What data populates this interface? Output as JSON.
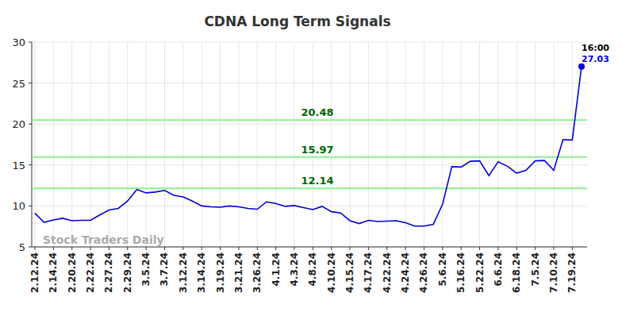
{
  "chart_data": {
    "type": "line",
    "title": "CDNA Long Term Signals",
    "watermark": "Stock Traders Daily",
    "categories": [
      "2.12.24",
      null,
      "2.14.24",
      null,
      "2.20.24",
      null,
      "2.22.24",
      null,
      "2.27.24",
      null,
      "2.29.24",
      null,
      "3.5.24",
      null,
      "3.7.24",
      null,
      "3.12.24",
      null,
      "3.14.24",
      null,
      "3.19.24",
      null,
      "3.21.24",
      null,
      "3.26.24",
      null,
      "4.1.24",
      null,
      "4.3.24",
      null,
      "4.8.24",
      null,
      "4.10.24",
      null,
      "4.15.24",
      null,
      "4.17.24",
      null,
      "4.22.24",
      null,
      "4.24.24",
      null,
      "4.26.24",
      null,
      "5.6.24",
      null,
      "5.16.24",
      null,
      "5.22.24",
      null,
      "6.6.24",
      null,
      "6.18.24",
      null,
      "7.5.24",
      null,
      "7.10.24",
      null,
      "7.19.24",
      null
    ],
    "series": [
      {
        "name": "CDNA",
        "color": "#0000dd",
        "values": [
          9.1,
          8.0,
          8.3,
          8.5,
          8.2,
          8.25,
          8.25,
          8.9,
          9.5,
          9.7,
          10.6,
          12.0,
          11.6,
          11.7,
          11.9,
          11.3,
          11.1,
          10.6,
          10.0,
          9.9,
          9.85,
          10.0,
          9.9,
          9.7,
          9.6,
          10.5,
          10.3,
          9.95,
          10.05,
          9.8,
          9.55,
          9.95,
          9.3,
          9.15,
          8.2,
          7.85,
          8.25,
          8.1,
          8.15,
          8.2,
          7.95,
          7.55,
          7.55,
          7.75,
          10.2,
          14.8,
          14.75,
          15.45,
          15.5,
          13.7,
          15.4,
          14.85,
          14.0,
          14.35,
          15.5,
          15.55,
          14.35,
          18.1,
          18.05,
          27.03
        ]
      }
    ],
    "levels": [
      20.48,
      15.97,
      12.14
    ],
    "level_color": "#90ee90",
    "annotations": [
      {
        "text": "16:00"
      }
    ],
    "ylim": [
      5,
      30
    ],
    "yticks": [
      5,
      10,
      15,
      20,
      25,
      30
    ],
    "grid": true
  }
}
